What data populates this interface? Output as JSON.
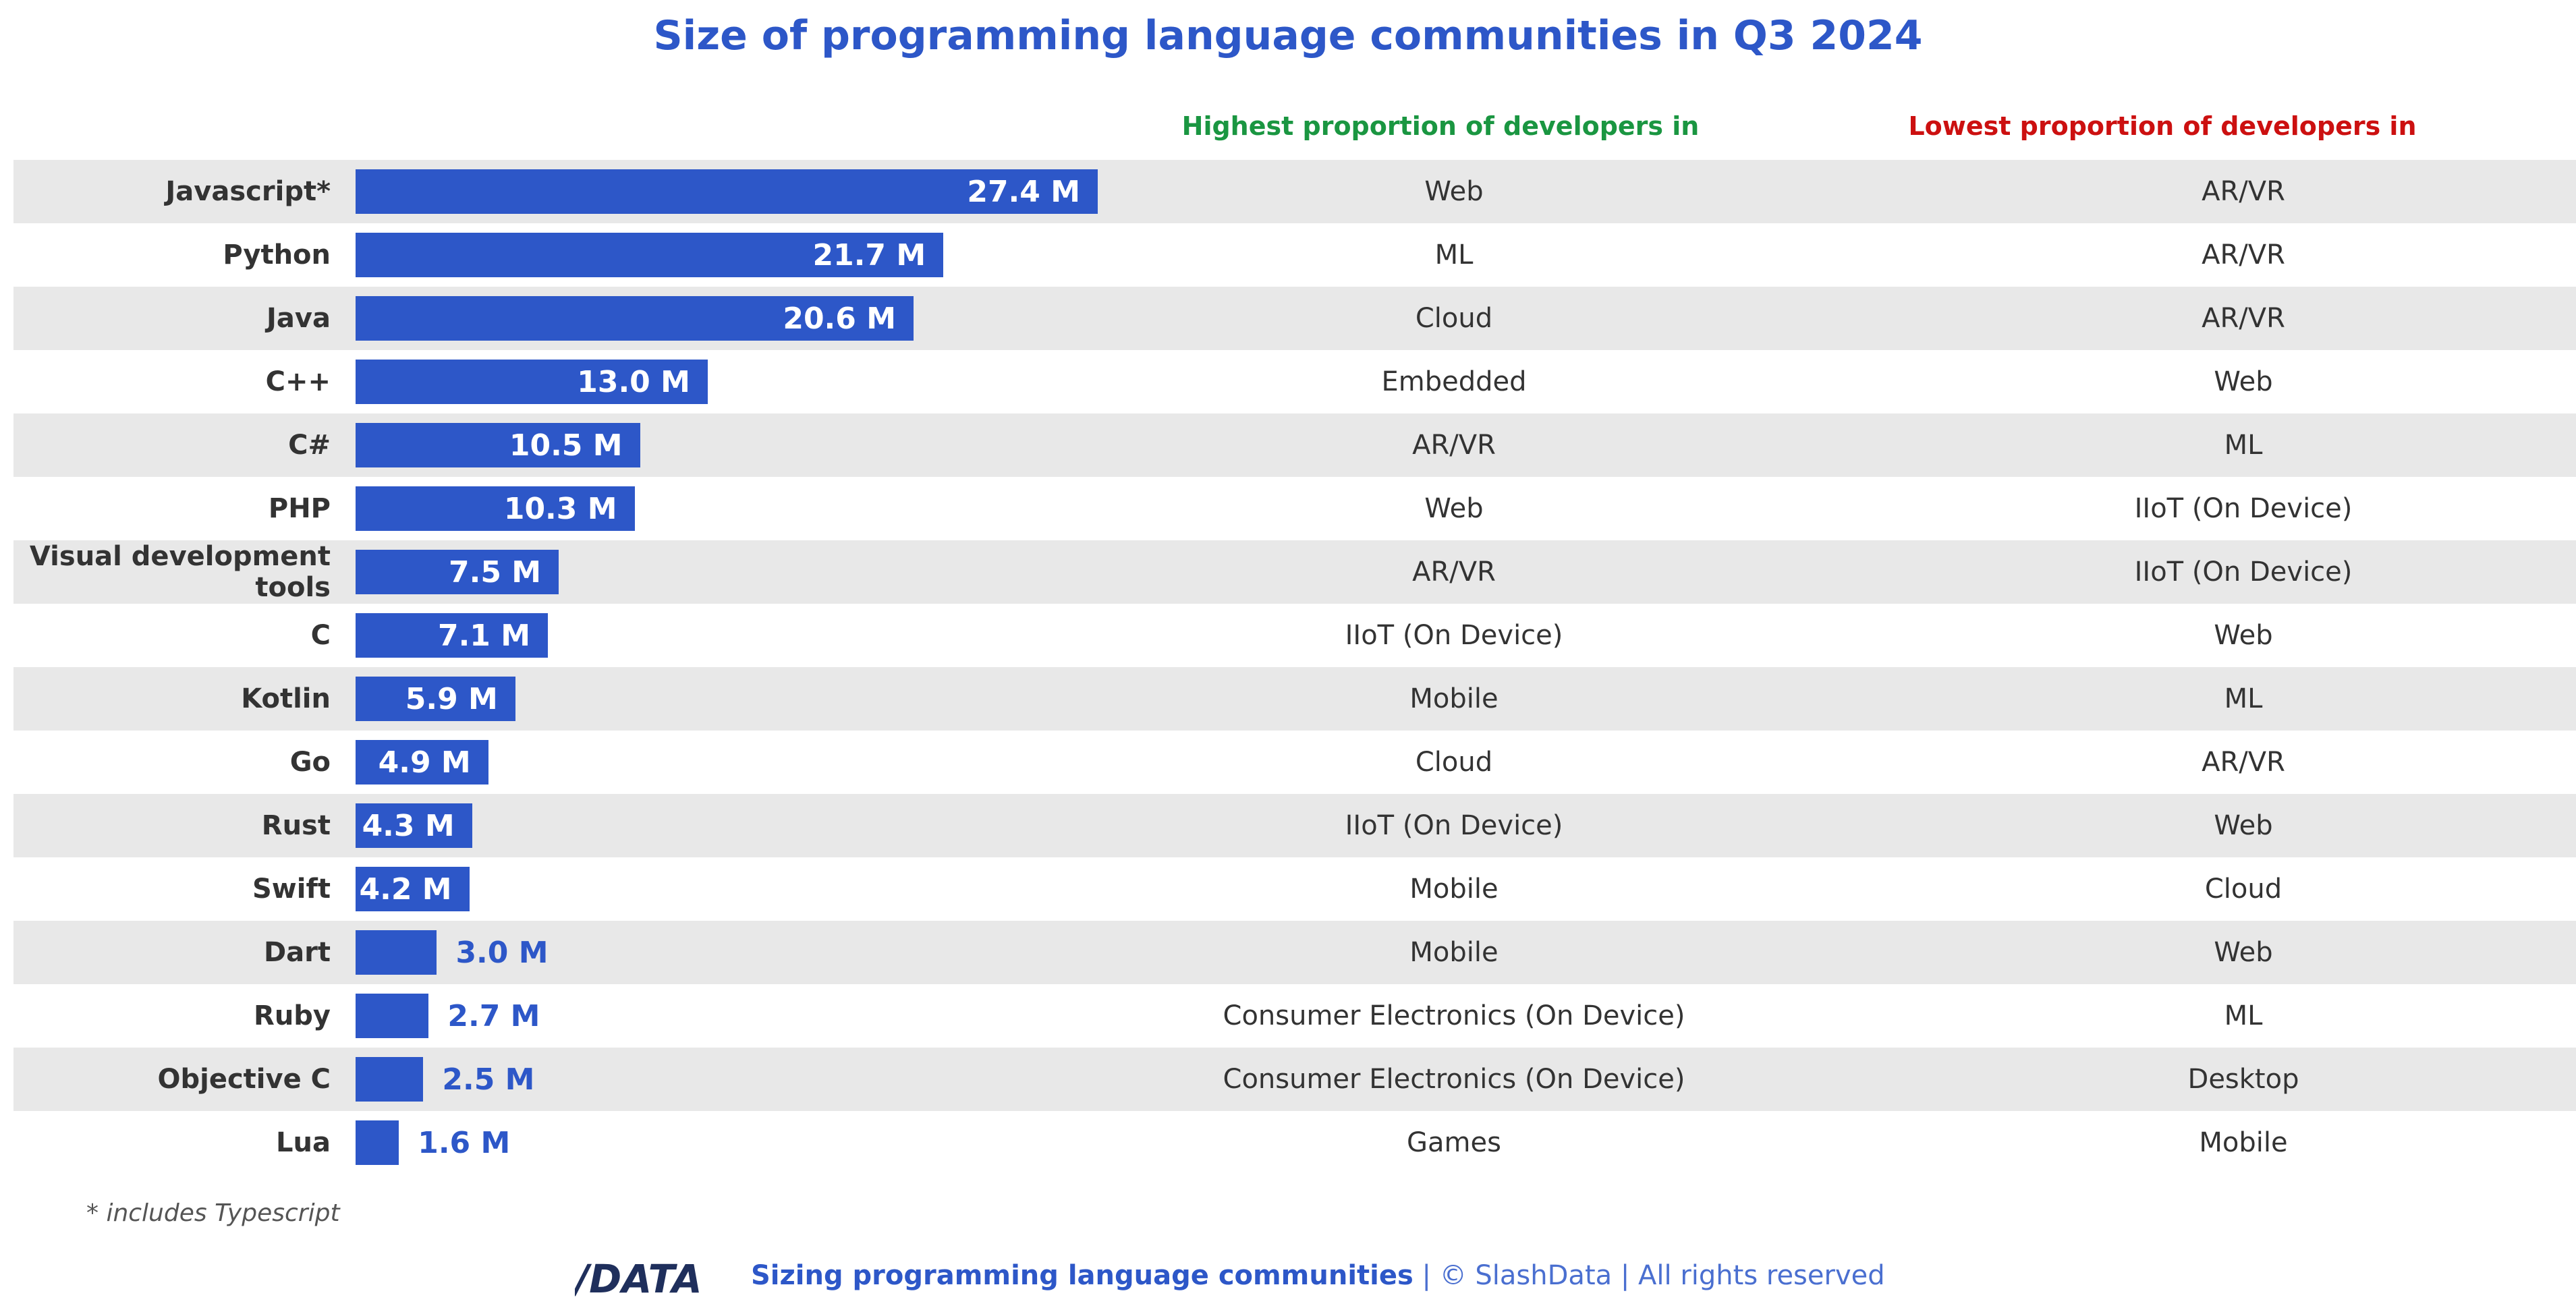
{
  "chart_data": {
    "type": "bar",
    "orientation": "horizontal",
    "title": "Size of programming language communities in Q3 2024",
    "unit_suffix": " M",
    "categories": [
      "Javascript*",
      "Python",
      "Java",
      "C++",
      "C#",
      "PHP",
      "Visual development tools",
      "C",
      "Kotlin",
      "Go",
      "Rust",
      "Swift",
      "Dart",
      "Ruby",
      "Objective C",
      "Lua"
    ],
    "values": [
      27.4,
      21.7,
      20.6,
      13.0,
      10.5,
      10.3,
      7.5,
      7.1,
      5.9,
      4.9,
      4.3,
      4.2,
      3.0,
      2.7,
      2.5,
      1.6
    ],
    "value_labels": [
      "27.4 M",
      "21.7 M",
      "20.6 M",
      "13.0 M",
      "10.5 M",
      "10.3 M",
      "7.5 M",
      "7.1 M",
      "5.9 M",
      "4.9 M",
      "4.3 M",
      "4.2 M",
      "3.0 M",
      "2.7 M",
      "2.5 M",
      "1.6 M"
    ],
    "xlim": [
      0,
      30
    ],
    "bar_color": "#2d57c8"
  },
  "table": {
    "highest_header": "Highest proportion of developers in",
    "lowest_header": "Lowest proportion of developers in",
    "highest_color": "#1a9641",
    "lowest_color": "#cc1010",
    "highest": [
      "Web",
      "ML",
      "Cloud",
      "Embedded",
      "AR/VR",
      "Web",
      "AR/VR",
      "IIoT (On Device)",
      "Mobile",
      "Cloud",
      "IIoT (On Device)",
      "Mobile",
      "Mobile",
      "Consumer Electronics (On Device)",
      "Consumer Electronics (On Device)",
      "Games"
    ],
    "lowest": [
      "AR/VR",
      "AR/VR",
      "AR/VR",
      "Web",
      "ML",
      "IIoT (On Device)",
      "IIoT (On Device)",
      "Web",
      "ML",
      "AR/VR",
      "Web",
      "Cloud",
      "Web",
      "ML",
      "Desktop",
      "Mobile"
    ]
  },
  "footnote": "* includes Typescript",
  "footer": {
    "logo_text": "/DATA",
    "source_bold": "Sizing programming language communities",
    "source_rest": " | © SlashData | All rights reserved"
  }
}
